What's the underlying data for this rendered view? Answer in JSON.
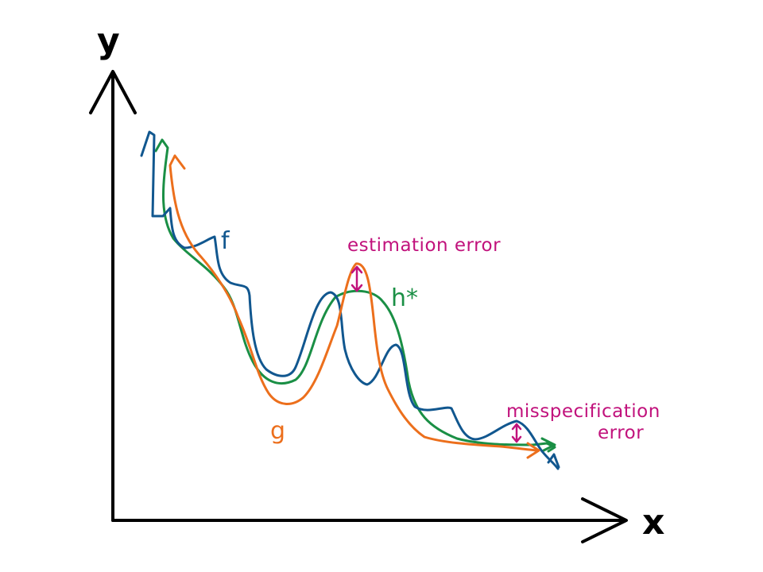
{
  "axes": {
    "y_label": "y",
    "x_label": "x"
  },
  "curves": {
    "f": {
      "label": "f",
      "color": "#11578f"
    },
    "g": {
      "label": "g",
      "color": "#ec6f1c"
    },
    "h": {
      "label": "h*",
      "color": "#1a8f45"
    }
  },
  "annotations": {
    "estimation_error": "estimation error",
    "misspecification_line1": "misspecification",
    "misspecification_line2": "error",
    "color": "#c1127c"
  }
}
